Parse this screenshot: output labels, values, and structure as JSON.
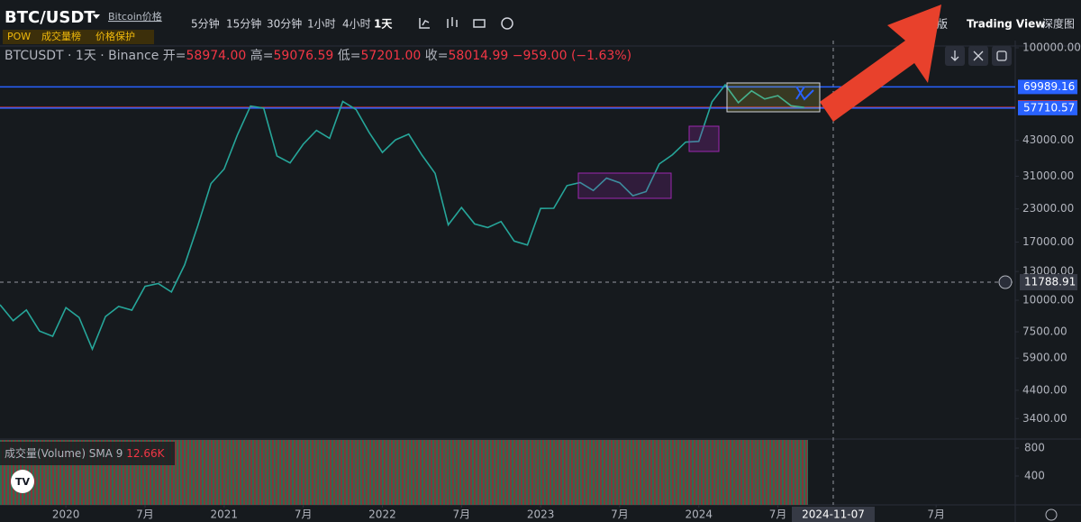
{
  "toolbar": {
    "symbol": "BTC/USDT",
    "link": "Bitcoin价格",
    "tags": [
      "POW",
      "成交量榜",
      "价格保护"
    ],
    "intervals": [
      "5分钟",
      "15分钟",
      "30分钟",
      "1小时",
      "4小时",
      "1天"
    ],
    "views": [
      "版",
      "Trading View",
      "深度图"
    ]
  },
  "legend": {
    "title": "BTCUSDT · 1天 · Binance",
    "items": [
      {
        "label": "开=",
        "value": "58974.00"
      },
      {
        "label": "高=",
        "value": "59076.59"
      },
      {
        "label": "低=",
        "value": "57201.00"
      },
      {
        "label": "收=",
        "value": "58014.99"
      }
    ],
    "change": "−959.00 (−1.63%)"
  },
  "chart_data": {
    "type": "line",
    "log_scale": true,
    "color": "#26a69a",
    "xlim": [
      "2019-08",
      "2026-01"
    ],
    "ylim": [
      2820,
      106800
    ],
    "xticks": [
      {
        "value": "2020-01",
        "label": "2020"
      },
      {
        "value": "2020-07",
        "label": "7月"
      },
      {
        "value": "2021-01",
        "label": "2021"
      },
      {
        "value": "2021-07",
        "label": "7月"
      },
      {
        "value": "2022-01",
        "label": "2022"
      },
      {
        "value": "2022-07",
        "label": "7月"
      },
      {
        "value": "2023-01",
        "label": "2023"
      },
      {
        "value": "2023-07",
        "label": "7月"
      },
      {
        "value": "2024-01",
        "label": "2024"
      },
      {
        "value": "2024-07",
        "label": "7月"
      },
      {
        "value": "2025-07",
        "label": "7月"
      }
    ],
    "yticks": [
      {
        "value": 100000,
        "label": "100000.00"
      },
      {
        "value": 43000,
        "label": "43000.00"
      },
      {
        "value": 31000,
        "label": "31000.00"
      },
      {
        "value": 23000,
        "label": "23000.00"
      },
      {
        "value": 17000,
        "label": "17000.00"
      },
      {
        "value": 13000,
        "label": "13000.00"
      },
      {
        "value": 10000,
        "label": "10000.00"
      },
      {
        "value": 7500,
        "label": "7500.00"
      },
      {
        "value": 5900,
        "label": "5900.00"
      },
      {
        "value": 4400,
        "label": "4400.00"
      },
      {
        "value": 3400,
        "label": "3400.00"
      }
    ],
    "series": [
      {
        "name": "BTCUSDT",
        "x": [
          "2019-08",
          "2019-09",
          "2019-10",
          "2019-11",
          "2019-12",
          "2020-01",
          "2020-02",
          "2020-03",
          "2020-04",
          "2020-05",
          "2020-06",
          "2020-07",
          "2020-08",
          "2020-09",
          "2020-10",
          "2020-11",
          "2020-12",
          "2021-01",
          "2021-02",
          "2021-03",
          "2021-04",
          "2021-05",
          "2021-06",
          "2021-07",
          "2021-08",
          "2021-09",
          "2021-10",
          "2021-11",
          "2021-12",
          "2022-01",
          "2022-02",
          "2022-03",
          "2022-04",
          "2022-05",
          "2022-06",
          "2022-07",
          "2022-08",
          "2022-09",
          "2022-10",
          "2022-11",
          "2022-12",
          "2023-01",
          "2023-02",
          "2023-03",
          "2023-04",
          "2023-05",
          "2023-06",
          "2023-07",
          "2023-08",
          "2023-09",
          "2023-10",
          "2023-11",
          "2023-12",
          "2024-01",
          "2024-02",
          "2024-03",
          "2024-04",
          "2024-05",
          "2024-06",
          "2024-07",
          "2024-08",
          "2024-09"
        ],
        "values": [
          9600,
          8300,
          9150,
          7550,
          7200,
          9350,
          8550,
          6400,
          8620,
          9450,
          9140,
          11350,
          11650,
          10780,
          13800,
          19700,
          29000,
          33100,
          45100,
          58800,
          57700,
          37300,
          35000,
          41500,
          47100,
          43800,
          61300,
          57000,
          46200,
          38500,
          43200,
          45500,
          37600,
          31800,
          19900,
          23300,
          20050,
          19400,
          20500,
          17150,
          16550,
          23100,
          23150,
          28450,
          29250,
          27200,
          30450,
          29200,
          25950,
          26950,
          34650,
          37700,
          42300,
          42600,
          61100,
          71300,
          60600,
          67500,
          62700,
          64600,
          58950,
          58015
        ]
      }
    ],
    "price_lines": [
      {
        "value": 69989.16,
        "color": "#2962ff"
      },
      {
        "value": 58014.99,
        "color": "#f23645"
      },
      {
        "value": 57710.57,
        "color": "#2962ff"
      }
    ],
    "crosshair": {
      "value": 11788.91,
      "date": "2024-11-07"
    },
    "volume": {
      "title": "成交量(Volume) SMA 9",
      "value": "12.66K",
      "ylim": [
        0,
        929
      ],
      "yticks": [
        800,
        400
      ]
    }
  }
}
